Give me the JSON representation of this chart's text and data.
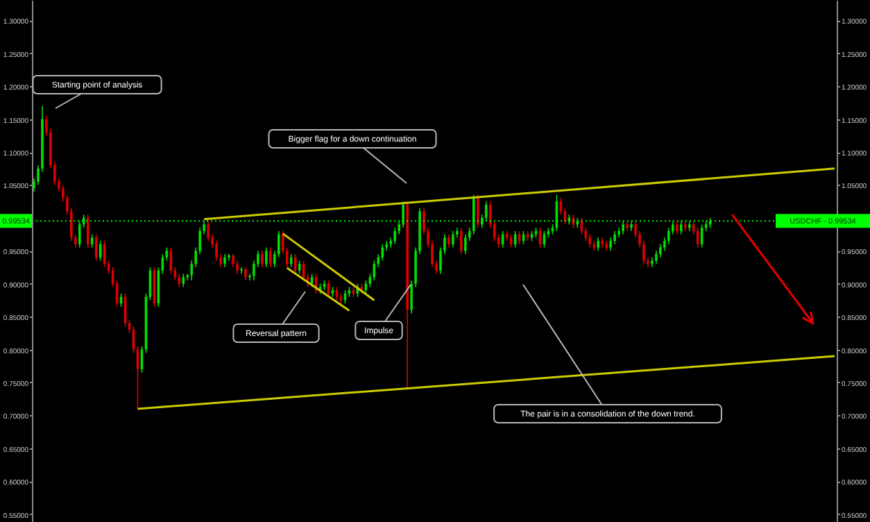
{
  "chart_data": {
    "type": "candlestick",
    "categories": [
      null,
      null,
      null,
      null,
      null,
      null,
      null,
      null,
      null,
      null,
      null,
      null,
      null,
      null,
      null,
      null,
      null,
      null,
      null,
      null,
      null,
      null,
      null,
      null,
      null,
      null,
      null,
      null,
      null,
      null,
      null,
      null,
      null,
      null,
      null,
      null,
      null,
      null,
      null,
      null,
      null,
      null,
      null,
      null,
      null,
      null,
      null,
      null,
      null,
      null,
      null,
      null,
      null,
      null,
      null,
      null,
      null,
      null,
      null,
      null,
      null,
      null,
      null,
      null,
      null,
      null,
      null,
      null,
      null,
      null,
      null,
      null,
      null,
      null,
      null,
      null,
      null,
      null,
      null,
      null,
      null,
      null,
      null,
      null,
      null,
      null,
      null,
      null,
      null,
      null,
      null,
      null,
      null,
      null,
      null,
      null,
      null,
      null,
      null,
      null,
      null,
      null,
      null,
      null,
      null,
      null,
      null,
      null,
      null,
      null,
      null,
      null,
      null,
      null,
      null,
      null,
      null,
      null,
      null,
      null,
      null,
      null,
      null,
      null,
      null,
      null,
      null,
      null,
      null,
      null,
      null,
      null,
      null,
      null,
      null,
      null,
      null,
      null,
      null,
      null,
      null,
      null,
      null,
      null,
      null,
      null,
      null,
      null,
      null,
      null,
      null,
      null,
      null,
      null,
      null,
      null,
      null,
      null,
      null,
      null,
      null,
      null,
      null,
      null,
      null,
      null,
      null,
      null,
      null,
      null,
      null,
      null,
      null,
      null,
      null,
      null,
      null,
      null,
      null,
      null,
      null,
      null,
      null,
      null,
      null,
      null,
      null,
      null,
      null,
      null,
      null,
      null,
      null,
      null
    ],
    "ohlc": [
      [
        1.045,
        1.06,
        1.04,
        1.055
      ],
      [
        1.055,
        1.08,
        1.05,
        1.075
      ],
      [
        1.075,
        1.17,
        1.07,
        1.15
      ],
      [
        1.15,
        1.155,
        1.125,
        1.13
      ],
      [
        1.13,
        1.135,
        1.075,
        1.08
      ],
      [
        1.08,
        1.085,
        1.05,
        1.055
      ],
      [
        1.055,
        1.06,
        1.04,
        1.045
      ],
      [
        1.045,
        1.05,
        1.025,
        1.03
      ],
      [
        1.03,
        1.035,
        1.005,
        1.01
      ],
      [
        1.01,
        1.015,
        0.965,
        0.97
      ],
      [
        0.97,
        0.975,
        0.955,
        0.96
      ],
      [
        0.96,
        0.995,
        0.955,
        0.99
      ],
      [
        0.99,
        1.005,
        0.985,
        1.0
      ],
      [
        1.0,
        1.005,
        0.955,
        0.96
      ],
      [
        0.96,
        0.975,
        0.955,
        0.97
      ],
      [
        0.97,
        0.975,
        0.935,
        0.94
      ],
      [
        0.94,
        0.965,
        0.935,
        0.96
      ],
      [
        0.96,
        0.965,
        0.925,
        0.93
      ],
      [
        0.93,
        0.935,
        0.915,
        0.92
      ],
      [
        0.92,
        0.925,
        0.895,
        0.9
      ],
      [
        0.9,
        0.905,
        0.865,
        0.87
      ],
      [
        0.87,
        0.885,
        0.865,
        0.88
      ],
      [
        0.88,
        0.885,
        0.835,
        0.84
      ],
      [
        0.84,
        0.845,
        0.825,
        0.83
      ],
      [
        0.83,
        0.835,
        0.795,
        0.8
      ],
      [
        0.8,
        0.805,
        0.71,
        0.77
      ],
      [
        0.77,
        0.805,
        0.765,
        0.8
      ],
      [
        0.8,
        0.885,
        0.795,
        0.88
      ],
      [
        0.88,
        0.925,
        0.875,
        0.92
      ],
      [
        0.92,
        0.925,
        0.865,
        0.87
      ],
      [
        0.87,
        0.925,
        0.865,
        0.92
      ],
      [
        0.92,
        0.945,
        0.915,
        0.94
      ],
      [
        0.94,
        0.955,
        0.935,
        0.95
      ],
      [
        0.95,
        0.955,
        0.915,
        0.92
      ],
      [
        0.92,
        0.925,
        0.905,
        0.91
      ],
      [
        0.91,
        0.915,
        0.895,
        0.9
      ],
      [
        0.9,
        0.915,
        0.895,
        0.91
      ],
      [
        0.91,
        0.915,
        0.905,
        0.913
      ],
      [
        0.913,
        0.935,
        0.905,
        0.93
      ],
      [
        0.93,
        0.955,
        0.925,
        0.95
      ],
      [
        0.95,
        0.985,
        0.945,
        0.98
      ],
      [
        0.98,
        0.995,
        0.975,
        0.99
      ],
      [
        0.99,
        0.995,
        0.965,
        0.97
      ],
      [
        0.97,
        0.975,
        0.955,
        0.96
      ],
      [
        0.96,
        0.965,
        0.935,
        0.94
      ],
      [
        0.94,
        0.945,
        0.925,
        0.93
      ],
      [
        0.93,
        0.945,
        0.925,
        0.94
      ],
      [
        0.94,
        0.945,
        0.935,
        0.943
      ],
      [
        0.943,
        0.945,
        0.925,
        0.93
      ],
      [
        0.93,
        0.935,
        0.915,
        0.92
      ],
      [
        0.92,
        0.925,
        0.915,
        0.922
      ],
      [
        0.922,
        0.925,
        0.905,
        0.91
      ],
      [
        0.91,
        0.915,
        0.905,
        0.912
      ],
      [
        0.912,
        0.935,
        0.905,
        0.93
      ],
      [
        0.93,
        0.95,
        0.925,
        0.945
      ],
      [
        0.945,
        0.95,
        0.925,
        0.93
      ],
      [
        0.93,
        0.955,
        0.925,
        0.95
      ],
      [
        0.95,
        0.955,
        0.925,
        0.93
      ],
      [
        0.93,
        0.95,
        0.925,
        0.945
      ],
      [
        0.945,
        0.98,
        0.94,
        0.975
      ],
      [
        0.975,
        0.98,
        0.945,
        0.95
      ],
      [
        0.95,
        0.955,
        0.925,
        0.93
      ],
      [
        0.93,
        0.945,
        0.925,
        0.94
      ],
      [
        0.94,
        0.945,
        0.915,
        0.92
      ],
      [
        0.92,
        0.935,
        0.915,
        0.93
      ],
      [
        0.93,
        0.935,
        0.905,
        0.91
      ],
      [
        0.91,
        0.915,
        0.895,
        0.9
      ],
      [
        0.9,
        0.915,
        0.895,
        0.91
      ],
      [
        0.91,
        0.915,
        0.885,
        0.89
      ],
      [
        0.89,
        0.9,
        0.885,
        0.895
      ],
      [
        0.895,
        0.905,
        0.89,
        0.9
      ],
      [
        0.9,
        0.905,
        0.88,
        0.885
      ],
      [
        0.885,
        0.895,
        0.88,
        0.89
      ],
      [
        0.89,
        0.895,
        0.875,
        0.88
      ],
      [
        0.88,
        0.885,
        0.87,
        0.875
      ],
      [
        0.875,
        0.89,
        0.87,
        0.885
      ],
      [
        0.885,
        0.895,
        0.88,
        0.89
      ],
      [
        0.89,
        0.895,
        0.88,
        0.885
      ],
      [
        0.885,
        0.9,
        0.88,
        0.895
      ],
      [
        0.895,
        0.9,
        0.885,
        0.89
      ],
      [
        0.89,
        0.905,
        0.885,
        0.9
      ],
      [
        0.9,
        0.915,
        0.895,
        0.91
      ],
      [
        0.91,
        0.935,
        0.905,
        0.93
      ],
      [
        0.93,
        0.945,
        0.925,
        0.94
      ],
      [
        0.94,
        0.96,
        0.935,
        0.955
      ],
      [
        0.955,
        0.965,
        0.95,
        0.96
      ],
      [
        0.96,
        0.97,
        0.955,
        0.965
      ],
      [
        0.965,
        0.985,
        0.96,
        0.98
      ],
      [
        0.98,
        0.995,
        0.975,
        0.99
      ],
      [
        0.99,
        1.025,
        0.985,
        1.02
      ],
      [
        1.02,
        1.025,
        0.74,
        0.86
      ],
      [
        0.86,
        0.905,
        0.855,
        0.9
      ],
      [
        0.9,
        0.955,
        0.895,
        0.95
      ],
      [
        0.95,
        1.015,
        0.945,
        1.01
      ],
      [
        1.01,
        1.015,
        0.975,
        0.98
      ],
      [
        0.98,
        0.985,
        0.955,
        0.96
      ],
      [
        0.96,
        0.965,
        0.925,
        0.93
      ],
      [
        0.93,
        0.935,
        0.915,
        0.92
      ],
      [
        0.92,
        0.955,
        0.915,
        0.95
      ],
      [
        0.95,
        0.975,
        0.945,
        0.97
      ],
      [
        0.97,
        0.975,
        0.955,
        0.96
      ],
      [
        0.96,
        0.98,
        0.955,
        0.975
      ],
      [
        0.975,
        0.985,
        0.97,
        0.98
      ],
      [
        0.98,
        0.985,
        0.945,
        0.95
      ],
      [
        0.95,
        0.975,
        0.945,
        0.97
      ],
      [
        0.97,
        0.985,
        0.965,
        0.98
      ],
      [
        0.98,
        1.035,
        0.975,
        1.03
      ],
      [
        1.03,
        1.035,
        0.985,
        0.99
      ],
      [
        0.99,
        1.005,
        0.985,
        1.0
      ],
      [
        1.0,
        1.025,
        0.995,
        1.02
      ],
      [
        1.02,
        1.025,
        0.985,
        0.99
      ],
      [
        0.99,
        0.995,
        0.965,
        0.97
      ],
      [
        0.97,
        0.975,
        0.955,
        0.96
      ],
      [
        0.96,
        0.98,
        0.955,
        0.975
      ],
      [
        0.975,
        0.98,
        0.965,
        0.97
      ],
      [
        0.97,
        0.975,
        0.955,
        0.96
      ],
      [
        0.96,
        0.98,
        0.955,
        0.975
      ],
      [
        0.975,
        0.98,
        0.96,
        0.965
      ],
      [
        0.965,
        0.98,
        0.96,
        0.975
      ],
      [
        0.975,
        0.98,
        0.965,
        0.97
      ],
      [
        0.97,
        0.98,
        0.965,
        0.975
      ],
      [
        0.975,
        0.985,
        0.97,
        0.98
      ],
      [
        0.98,
        0.985,
        0.955,
        0.96
      ],
      [
        0.96,
        0.98,
        0.955,
        0.975
      ],
      [
        0.975,
        0.985,
        0.97,
        0.98
      ],
      [
        0.98,
        0.99,
        0.975,
        0.985
      ],
      [
        0.985,
        1.035,
        0.98,
        1.025
      ],
      [
        1.025,
        1.03,
        1.005,
        1.01
      ],
      [
        1.01,
        1.015,
        0.99,
        0.995
      ],
      [
        0.995,
        1.005,
        0.99,
        1.0
      ],
      [
        1.0,
        1.005,
        0.985,
        0.99
      ],
      [
        0.99,
        1.0,
        0.985,
        0.995
      ],
      [
        0.995,
        1.0,
        0.975,
        0.98
      ],
      [
        0.98,
        0.985,
        0.965,
        0.97
      ],
      [
        0.97,
        0.975,
        0.955,
        0.96
      ],
      [
        0.96,
        0.965,
        0.95,
        0.955
      ],
      [
        0.955,
        0.97,
        0.95,
        0.965
      ],
      [
        0.965,
        0.97,
        0.955,
        0.96
      ],
      [
        0.96,
        0.965,
        0.95,
        0.955
      ],
      [
        0.955,
        0.97,
        0.95,
        0.965
      ],
      [
        0.965,
        0.98,
        0.96,
        0.975
      ],
      [
        0.975,
        0.985,
        0.97,
        0.98
      ],
      [
        0.98,
        0.995,
        0.975,
        0.99
      ],
      [
        0.99,
        0.995,
        0.98,
        0.985
      ],
      [
        0.985,
        0.995,
        0.98,
        0.99
      ],
      [
        0.99,
        0.995,
        0.97,
        0.975
      ],
      [
        0.975,
        0.98,
        0.955,
        0.96
      ],
      [
        0.96,
        0.965,
        0.93,
        0.935
      ],
      [
        0.935,
        0.94,
        0.925,
        0.93
      ],
      [
        0.93,
        0.94,
        0.925,
        0.935
      ],
      [
        0.935,
        0.95,
        0.93,
        0.945
      ],
      [
        0.945,
        0.96,
        0.94,
        0.955
      ],
      [
        0.955,
        0.97,
        0.95,
        0.965
      ],
      [
        0.965,
        0.985,
        0.96,
        0.98
      ],
      [
        0.98,
        0.995,
        0.975,
        0.99
      ],
      [
        0.99,
        0.995,
        0.975,
        0.98
      ],
      [
        0.98,
        0.995,
        0.975,
        0.99
      ],
      [
        0.99,
        0.995,
        0.98,
        0.985
      ],
      [
        0.985,
        0.995,
        0.98,
        0.99
      ],
      [
        0.99,
        0.995,
        0.975,
        0.98
      ],
      [
        0.98,
        0.985,
        0.955,
        0.96
      ],
      [
        0.96,
        0.99,
        0.955,
        0.985
      ],
      [
        0.985,
        0.995,
        0.98,
        0.99
      ],
      [
        0.99,
        1.0,
        0.985,
        0.995
      ],
      null,
      null,
      null,
      null,
      null,
      null,
      null,
      null,
      null,
      null,
      null,
      null,
      null,
      null,
      null,
      null,
      null,
      null,
      null,
      null,
      null,
      null,
      null,
      null,
      null,
      null,
      null,
      null,
      null,
      null
    ],
    "colors": [
      "#00e000",
      "#00e000",
      "#00e000",
      "#e00000",
      "#e00000",
      "#e00000",
      "#e00000",
      "#e00000",
      "#e00000",
      "#e00000",
      "#e00000",
      "#00e000",
      "#00e000",
      "#e00000",
      "#00e000",
      "#e00000",
      "#00e000",
      "#e00000",
      "#e00000",
      "#e00000",
      "#e00000",
      "#00e000",
      "#e00000",
      "#e00000",
      "#e00000",
      "#e00000",
      "#00e000",
      "#00e000",
      "#00e000",
      "#e00000",
      "#00e000",
      "#00e000",
      "#00e000",
      "#e00000",
      "#e00000",
      "#e00000",
      "#00e000",
      "#00e000",
      "#00e000",
      "#00e000",
      "#00e000",
      "#00e000",
      "#e00000",
      "#e00000",
      "#e00000",
      "#e00000",
      "#00e000",
      "#00e000",
      "#e00000",
      "#e00000",
      "#00e000",
      "#e00000",
      "#00e000",
      "#00e000",
      "#00e000",
      "#e00000",
      "#00e000",
      "#e00000",
      "#00e000",
      "#00e000",
      "#e00000",
      "#e00000",
      "#00e000",
      "#e00000",
      "#00e000",
      "#e00000",
      "#e00000",
      "#00e000",
      "#e00000",
      "#00e000",
      "#00e000",
      "#e00000",
      "#00e000",
      "#e00000",
      "#e00000",
      "#00e000",
      "#00e000",
      "#e00000",
      "#00e000",
      "#e00000",
      "#00e000",
      "#00e000",
      "#00e000",
      "#00e000",
      "#00e000",
      "#00e000",
      "#00e000",
      "#00e000",
      "#00e000",
      "#00e000",
      "#e00000",
      "#00e000",
      "#00e000",
      "#00e000",
      "#e00000",
      "#e00000",
      "#e00000",
      "#e00000",
      "#00e000",
      "#00e000",
      "#e00000",
      "#00e000",
      "#00e000",
      "#e00000",
      "#00e000",
      "#00e000",
      "#00e000",
      "#e00000",
      "#00e000",
      "#00e000",
      "#e00000",
      "#e00000",
      "#e00000",
      "#00e000",
      "#e00000",
      "#e00000",
      "#00e000",
      "#e00000",
      "#00e000",
      "#e00000",
      "#00e000",
      "#00e000",
      "#e00000",
      "#00e000",
      "#00e000",
      "#00e000",
      "#00e000",
      "#e00000",
      "#e00000",
      "#00e000",
      "#e00000",
      "#00e000",
      "#e00000",
      "#e00000",
      "#e00000",
      "#e00000",
      "#00e000",
      "#e00000",
      "#e00000",
      "#00e000",
      "#00e000",
      "#00e000",
      "#00e000",
      "#e00000",
      "#00e000",
      "#e00000",
      "#e00000",
      "#e00000",
      "#e00000",
      "#00e000",
      "#00e000",
      "#00e000",
      "#00e000",
      "#00e000",
      "#00e000",
      "#e00000",
      "#00e000",
      "#e00000",
      "#00e000",
      "#e00000",
      "#e00000",
      "#00e000",
      "#00e000",
      "#00e000",
      null,
      null,
      null,
      null,
      null,
      null,
      null,
      null,
      null,
      null,
      null,
      null,
      null,
      null,
      null,
      null,
      null,
      null,
      null,
      null,
      null,
      null,
      null,
      null,
      null,
      null,
      null,
      null,
      null,
      null
    ],
    "series": [
      {
        "type": "line",
        "color": "#cccc00",
        "values": [
          null,
          null,
          null,
          null,
          null,
          null,
          null,
          null,
          null,
          null,
          null,
          null,
          null,
          null,
          null,
          null,
          null,
          null,
          null,
          null,
          null,
          null,
          null,
          null,
          null,
          null,
          null,
          null,
          null,
          null,
          null,
          null,
          null,
          null,
          null,
          null,
          null,
          null,
          null,
          null,
          null,
          0.998,
          null,
          null,
          null,
          null,
          null,
          null,
          null,
          null,
          null,
          null,
          null,
          null,
          null,
          null,
          null,
          null,
          null,
          null,
          null,
          null,
          null,
          null,
          null,
          null,
          null,
          null,
          null,
          null,
          null,
          null,
          null,
          null,
          null,
          null,
          null,
          null,
          null,
          null,
          null,
          null,
          null,
          null,
          null,
          null,
          null,
          null,
          null,
          null,
          null,
          null,
          null,
          null,
          null,
          null,
          null,
          null,
          null,
          null,
          null,
          null,
          null,
          null,
          null,
          null,
          null,
          null,
          null,
          null,
          null,
          null,
          null,
          null,
          null,
          null,
          null,
          null,
          null,
          null,
          null,
          null,
          null,
          null,
          null,
          null,
          null,
          null,
          null,
          null,
          null,
          null,
          null,
          null,
          null,
          null,
          null,
          null,
          null,
          null,
          null,
          null,
          null,
          null,
          null,
          null,
          null,
          null,
          null,
          null,
          null,
          null,
          null,
          null,
          null,
          null,
          null,
          null,
          null,
          null,
          null,
          null,
          null,
          null,
          null,
          null,
          null,
          null,
          null,
          null,
          null,
          null,
          null,
          null,
          null,
          null,
          null,
          null,
          null,
          null,
          null,
          null,
          null,
          null,
          null,
          null,
          null,
          null,
          null,
          null,
          null,
          null,
          null,
          1.075
        ]
      },
      {
        "type": "line",
        "color": "#cccc00",
        "values": [
          null,
          null,
          null,
          null,
          null,
          null,
          null,
          null,
          null,
          null,
          null,
          null,
          null,
          null,
          null,
          null,
          null,
          null,
          null,
          null,
          null,
          null,
          null,
          null,
          null,
          0.71,
          null,
          null,
          null,
          null,
          null,
          null,
          null,
          null,
          null,
          null,
          null,
          null,
          null,
          null,
          null,
          null,
          null,
          null,
          null,
          null,
          null,
          null,
          null,
          null,
          null,
          null,
          null,
          null,
          null,
          null,
          null,
          null,
          null,
          null,
          null,
          null,
          null,
          null,
          null,
          null,
          null,
          null,
          null,
          null,
          null,
          null,
          null,
          null,
          null,
          null,
          null,
          null,
          null,
          null,
          null,
          null,
          null,
          null,
          null,
          null,
          null,
          null,
          null,
          null,
          null,
          null,
          null,
          null,
          null,
          null,
          null,
          null,
          null,
          null,
          null,
          null,
          null,
          null,
          null,
          null,
          null,
          null,
          null,
          null,
          null,
          null,
          null,
          null,
          null,
          null,
          null,
          null,
          null,
          null,
          null,
          null,
          null,
          null,
          null,
          null,
          null,
          null,
          null,
          null,
          null,
          null,
          null,
          null,
          null,
          null,
          null,
          null,
          null,
          null,
          null,
          null,
          null,
          null,
          null,
          null,
          null,
          null,
          null,
          null,
          null,
          null,
          null,
          null,
          null,
          null,
          null,
          null,
          null,
          null,
          null,
          null,
          null,
          null,
          null,
          null,
          null,
          null,
          null,
          null,
          null,
          null,
          null,
          null,
          null,
          null,
          null,
          null,
          null,
          null,
          null,
          null,
          null,
          null,
          null,
          null,
          null,
          null,
          null,
          null,
          null,
          null,
          null,
          0.79
        ]
      },
      {
        "type": "line",
        "color": "#cccc00",
        "values": [
          null,
          null,
          null,
          null,
          null,
          null,
          null,
          null,
          null,
          null,
          null,
          null,
          null,
          null,
          null,
          null,
          null,
          null,
          null,
          null,
          null,
          null,
          null,
          null,
          null,
          null,
          null,
          null,
          null,
          null,
          null,
          null,
          null,
          null,
          null,
          null,
          null,
          null,
          null,
          null,
          null,
          null,
          null,
          null,
          null,
          null,
          null,
          null,
          null,
          null,
          null,
          null,
          null,
          null,
          null,
          null,
          null,
          null,
          null,
          null,
          0.976,
          null,
          null,
          null,
          null,
          null,
          null,
          null,
          null,
          null,
          null,
          null,
          null,
          null,
          null,
          null,
          null,
          null,
          null,
          null,
          null,
          null,
          0.875,
          null,
          null,
          null,
          null,
          null,
          null,
          null,
          null,
          null,
          null,
          null,
          null,
          null,
          null,
          null,
          null,
          null,
          null,
          null,
          null,
          null,
          null,
          null,
          null,
          null,
          null,
          null,
          null,
          null,
          null,
          null,
          null,
          null,
          null,
          null,
          null,
          null,
          null,
          null,
          null,
          null,
          null,
          null,
          null,
          null,
          null,
          null,
          null,
          null,
          null,
          null,
          null,
          null,
          null,
          null,
          null,
          null,
          null,
          null,
          null,
          null,
          null,
          null,
          null,
          null,
          null,
          null,
          null,
          null,
          null,
          null,
          null,
          null,
          null,
          null,
          null,
          null,
          null,
          null,
          null,
          null,
          null,
          null,
          null,
          null,
          null,
          null,
          null,
          null,
          null,
          null,
          null,
          null,
          null,
          null,
          null,
          null,
          null,
          null,
          null,
          null,
          null,
          null,
          null,
          null,
          null,
          null,
          null,
          null,
          null,
          null
        ]
      },
      {
        "type": "line",
        "color": "#cccc00",
        "values": [
          null,
          null,
          null,
          null,
          null,
          null,
          null,
          null,
          null,
          null,
          null,
          null,
          null,
          null,
          null,
          null,
          null,
          null,
          null,
          null,
          null,
          null,
          null,
          null,
          null,
          null,
          null,
          null,
          null,
          null,
          null,
          null,
          null,
          null,
          null,
          null,
          null,
          null,
          null,
          null,
          null,
          null,
          null,
          null,
          null,
          null,
          null,
          null,
          null,
          null,
          null,
          null,
          null,
          null,
          null,
          null,
          null,
          null,
          null,
          null,
          null,
          0.924,
          null,
          null,
          null,
          null,
          null,
          null,
          null,
          null,
          null,
          null,
          null,
          null,
          null,
          null,
          0.859,
          null,
          null,
          null,
          null,
          null,
          null,
          null,
          null,
          null,
          null,
          null,
          null,
          null,
          null,
          null,
          null,
          null,
          null,
          null,
          null,
          null,
          null,
          null,
          null,
          null,
          null,
          null,
          null,
          null,
          null,
          null,
          null,
          null,
          null,
          null,
          null,
          null,
          null,
          null,
          null,
          null,
          null,
          null,
          null,
          null,
          null,
          null,
          null,
          null,
          null,
          null,
          null,
          null,
          null,
          null,
          null,
          null,
          null,
          null,
          null,
          null,
          null,
          null,
          null,
          null,
          null,
          null,
          null,
          null,
          null,
          null,
          null,
          null,
          null,
          null,
          null,
          null,
          null,
          null,
          null,
          null,
          null,
          null,
          null,
          null,
          null,
          null,
          null,
          null,
          null,
          null,
          null,
          null,
          null,
          null,
          null,
          null,
          null,
          null,
          null,
          null,
          null,
          null,
          null,
          null,
          null,
          null,
          null,
          null,
          null,
          null,
          null,
          null,
          null,
          null,
          null,
          null
        ]
      }
    ],
    "ylim": [
      0.538,
      1.331
    ],
    "yticks": [
      {
        "value": 1.3,
        "label": "1.30000"
      },
      {
        "value": 1.25,
        "label": "1.25000"
      },
      {
        "value": 1.2,
        "label": "1.20000"
      },
      {
        "value": 1.15,
        "label": "1.15000"
      },
      {
        "value": 1.1,
        "label": "1.10000"
      },
      {
        "value": 1.05,
        "label": "1.05000"
      },
      {
        "value": 0.95,
        "label": "0.95000"
      },
      {
        "value": 0.9,
        "label": "0.90000"
      },
      {
        "value": 0.85,
        "label": "0.85000"
      },
      {
        "value": 0.8,
        "label": "0.80000"
      },
      {
        "value": 0.75,
        "label": "0.75000"
      },
      {
        "value": 0.7,
        "label": "0.70000"
      },
      {
        "value": 0.65,
        "label": "0.65000"
      },
      {
        "value": 0.6,
        "label": "0.60000"
      },
      {
        "value": 0.55,
        "label": "0.55000"
      }
    ],
    "y2lim": [
      0.538,
      1.331
    ],
    "y2ticks": [
      {
        "value": 1.3,
        "label": "1.30000"
      },
      {
        "value": 1.25,
        "label": "1.25000"
      },
      {
        "value": 1.2,
        "label": "1.20000"
      },
      {
        "value": 1.15,
        "label": "1.15000"
      },
      {
        "value": 1.1,
        "label": "1.10000"
      },
      {
        "value": 1.05,
        "label": "1.05000"
      },
      {
        "value": 0.95,
        "label": "0.95000"
      },
      {
        "value": 0.9,
        "label": "0.90000"
      },
      {
        "value": 0.85,
        "label": "0.85000"
      },
      {
        "value": 0.8,
        "label": "0.80000"
      },
      {
        "value": 0.75,
        "label": "0.75000"
      },
      {
        "value": 0.7,
        "label": "0.70000"
      },
      {
        "value": 0.65,
        "label": "0.65000"
      },
      {
        "value": 0.6,
        "label": "0.60000"
      },
      {
        "value": 0.55,
        "label": "0.55000"
      }
    ],
    "tick_labels": "y",
    "ref_lines": [
      {
        "axis": "y2",
        "value": 0.99534,
        "label": "USDCHF - 0.99534",
        "color": "#00ff00",
        "line_style": "dotted"
      }
    ],
    "annotations": [
      "Starting point of analysis",
      "Bigger flag for a down continuation",
      "Reversal pattern",
      "Impulse",
      "The pair is in a consolidation of the down trend.",
      "0.99534"
    ]
  }
}
